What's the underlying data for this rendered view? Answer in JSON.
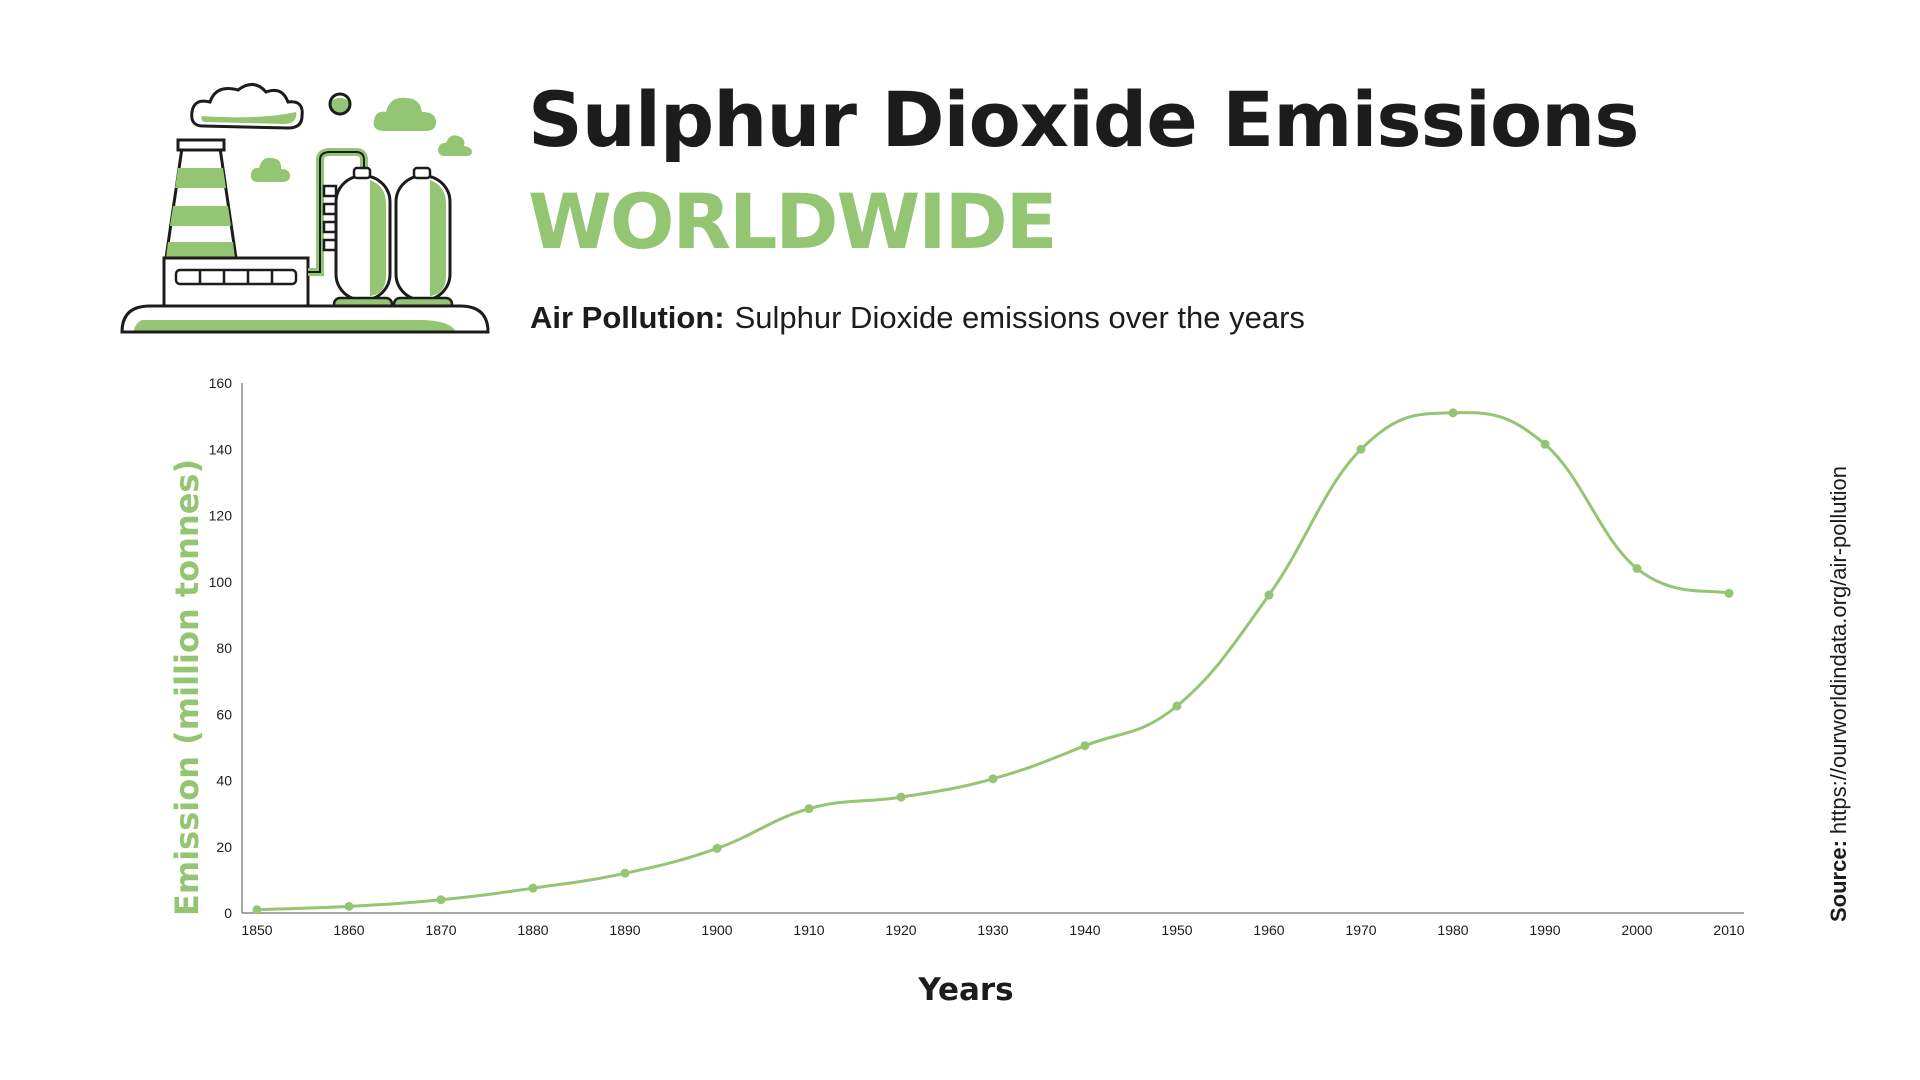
{
  "colors": {
    "accent": "#93c572",
    "text": "#1c1c1c",
    "axis": "#888888"
  },
  "header": {
    "title": "Sulphur Dioxide Emissions",
    "title_highlight": "WORLDWIDE",
    "subtitle_label": "Air Pollution:",
    "subtitle_text": "Sulphur Dioxide emissions over the years",
    "illustration_icon": "factory-icon"
  },
  "source": {
    "label": "Source:",
    "url": "https://ourworldindata.org/air-pollution"
  },
  "chart_data": {
    "type": "line",
    "title": "Sulphur Dioxide Emissions",
    "xlabel": "Years",
    "ylabel": "Emission (million tonnes)",
    "ylim": [
      0,
      160
    ],
    "y_ticks": [
      "0",
      "20",
      "40",
      "60",
      "80",
      "100",
      "120",
      "140",
      "160"
    ],
    "x": [
      1850,
      1860,
      1870,
      1880,
      1890,
      1900,
      1910,
      1920,
      1930,
      1940,
      1950,
      1960,
      1970,
      1980,
      1990,
      2000,
      2010
    ],
    "x_labels": [
      "1850",
      "1860",
      "1870",
      "1880",
      "1890",
      "1900",
      "1910",
      "1920",
      "1930",
      "1940",
      "1950",
      "1960",
      "1970",
      "1980",
      "1990",
      "2000",
      "2010"
    ],
    "series": [
      {
        "values": [
          1,
          2,
          4,
          7.5,
          12,
          19.5,
          31.5,
          35,
          40.5,
          50.5,
          62.5,
          96,
          140,
          151,
          141.5,
          104,
          96.5
        ]
      }
    ],
    "grid": false,
    "smooth": true,
    "markers": true
  }
}
